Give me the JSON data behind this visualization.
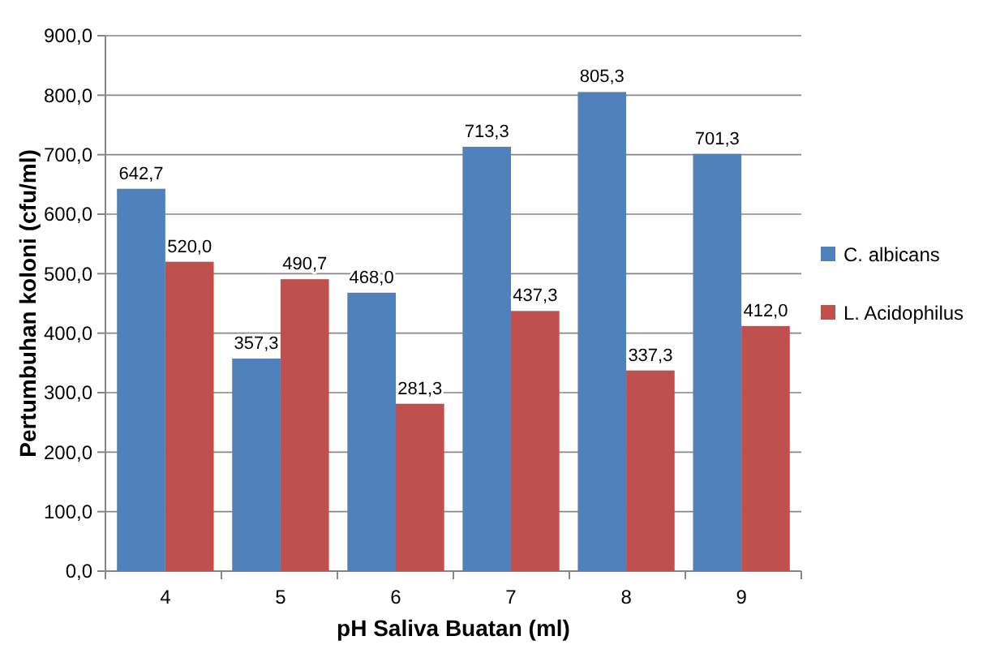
{
  "chart_data": {
    "type": "bar",
    "xlabel": "pH Saliva Buatan (ml)",
    "ylabel": "Pertumbuhan koloni (cfu/ml)",
    "categories": [
      "4",
      "5",
      "6",
      "7",
      "8",
      "9"
    ],
    "series": [
      {
        "name": "C. albicans",
        "color": "#4f81bd",
        "values": [
          642.7,
          357.3,
          468.0,
          713.3,
          805.3,
          701.3
        ],
        "value_labels": [
          "642,7",
          "357,3",
          "468,0",
          "713,3",
          "805,3",
          "701,3"
        ]
      },
      {
        "name": "L. Acidophilus",
        "color": "#c0504d",
        "values": [
          520.0,
          490.7,
          281.3,
          437.3,
          337.3,
          412.0
        ],
        "value_labels": [
          "520,0",
          "490,7",
          "281,3",
          "437,3",
          "337,3",
          "412,0"
        ]
      }
    ],
    "ylim": [
      0,
      900
    ],
    "yticks": [
      {
        "value": 0,
        "label": "0,0"
      },
      {
        "value": 100,
        "label": "100,0"
      },
      {
        "value": 200,
        "label": "200,0"
      },
      {
        "value": 300,
        "label": "300,0"
      },
      {
        "value": 400,
        "label": "400,0"
      },
      {
        "value": 500,
        "label": "500,0"
      },
      {
        "value": 600,
        "label": "600,0"
      },
      {
        "value": 700,
        "label": "700,0"
      },
      {
        "value": 800,
        "label": "800,0"
      },
      {
        "value": 900,
        "label": "900,0"
      }
    ],
    "grid": "y",
    "legend": "right"
  }
}
